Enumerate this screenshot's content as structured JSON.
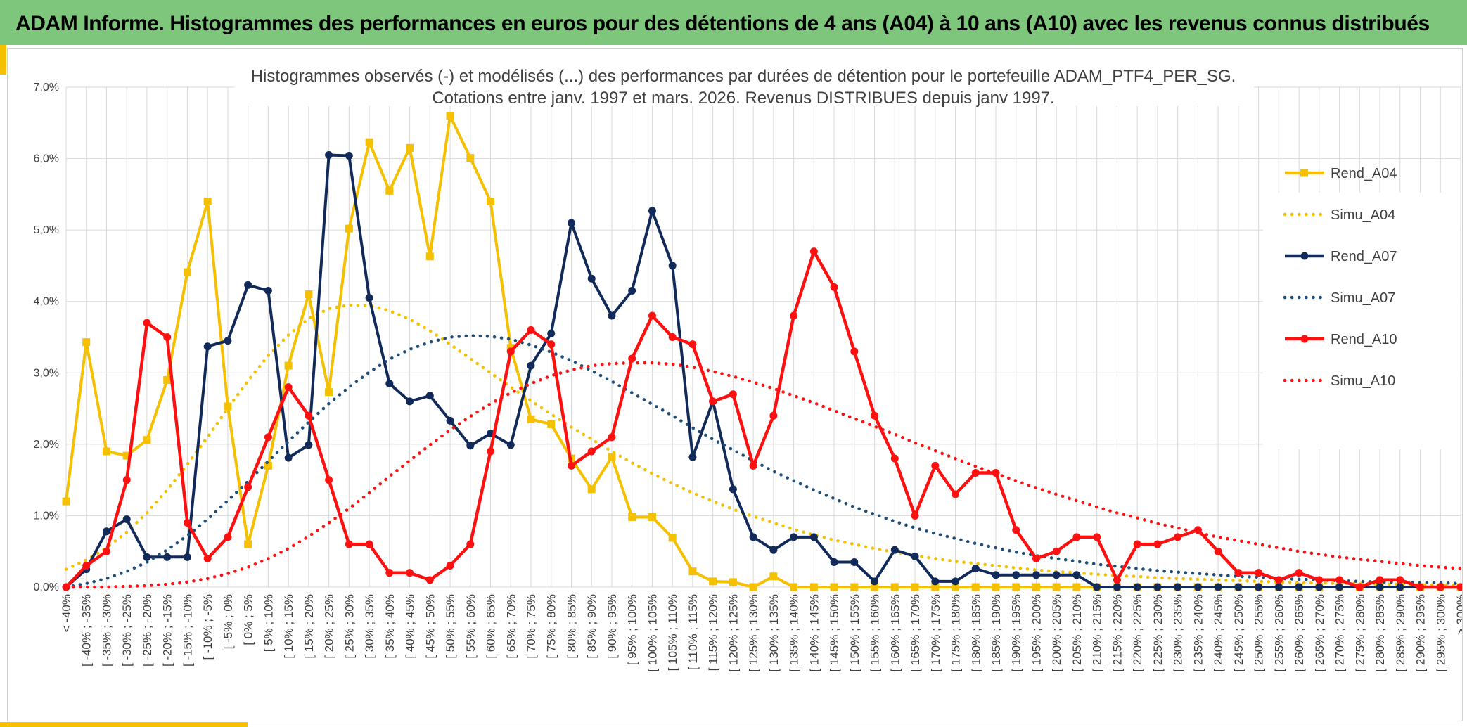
{
  "header": {
    "title": "ADAM Informe. Histogrammes des performances en euros pour des détentions de 4 ans (A04) à 10 ans (A10) avec les revenus connus distribués"
  },
  "chart_data": {
    "type": "line",
    "title": [
      "Histogrammes observés (-) et modélisés (...) des performances par durées de détention pour le portefeuille ADAM_PTF4_PER_SG.",
      "Cotations entre janv. 1997 et mars. 2026. Revenus DISTRIBUES depuis janv 1997."
    ],
    "xlabel": "",
    "ylabel": "",
    "ylim": [
      0,
      7
    ],
    "yticks": [
      "0,0%",
      "1,0%",
      "2,0%",
      "3,0%",
      "4,0%",
      "5,0%",
      "6,0%",
      "7,0%"
    ],
    "grid": true,
    "legend_position": "right",
    "categories": [
      "< -40%",
      "[ -40% ; -35%",
      "[ -35% ; -30%",
      "[ -30% ; -25%",
      "[ -25% ; -20%",
      "[ -20% ; -15%",
      "[ -15% ; -10%",
      "[ -10% ; -5%",
      "[ -5% ; 0%",
      "[ 0% ; 5%",
      "[ 5% ; 10%",
      "[ 10% ; 15%",
      "[ 15% ; 20%",
      "[ 20% ; 25%",
      "[ 25% ; 30%",
      "[ 30% ; 35%",
      "[ 35% ; 40%",
      "[ 40% ; 45%",
      "[ 45% ; 50%",
      "[ 50% ; 55%",
      "[ 55% ; 60%",
      "[ 60% ; 65%",
      "[ 65% ; 70%",
      "[ 70% ; 75%",
      "[ 75% ; 80%",
      "[ 80% ; 85%",
      "[ 85% ; 90%",
      "[ 90% ; 95%",
      "[ 95% ; 100%",
      "[ 100% ; 105%",
      "[ 105% ; 110%",
      "[ 110% ; 115%",
      "[ 115% ; 120%",
      "[ 120% ; 125%",
      "[ 125% ; 130%",
      "[ 130% ; 135%",
      "[ 135% ; 140%",
      "[ 140% ; 145%",
      "[ 145% ; 150%",
      "[ 150% ; 155%",
      "[ 155% ; 160%",
      "[ 160% ; 165%",
      "[ 165% ; 170%",
      "[ 170% ; 175%",
      "[ 175% ; 180%",
      "[ 180% ; 185%",
      "[ 185% ; 190%",
      "[ 190% ; 195%",
      "[ 195% ; 200%",
      "[ 200% ; 205%",
      "[ 205% ; 210%",
      "[ 210% ; 215%",
      "[ 215% ; 220%",
      "[ 220% ; 225%",
      "[ 225% ; 230%",
      "[ 230% ; 235%",
      "[ 235% ; 240%",
      "[ 240% ; 245%",
      "[ 245% ; 250%",
      "[ 250% ; 255%",
      "[ 255% ; 260%",
      "[ 260% ; 265%",
      "[ 265% ; 270%",
      "[ 270% ; 275%",
      "[ 275% ; 280%",
      "[ 280% ; 285%",
      "[ 285% ; 290%",
      "[ 290% ; 295%",
      "[ 295% ; 300%",
      "> 300%"
    ],
    "series": [
      {
        "name": "Rend_A04",
        "color": "#f5c000",
        "style": "solid",
        "marker": "square",
        "values": [
          1.2,
          3.43,
          1.9,
          1.84,
          2.06,
          2.9,
          4.41,
          5.4,
          2.53,
          0.6,
          1.7,
          3.1,
          4.1,
          2.73,
          5.02,
          6.23,
          5.55,
          6.15,
          4.63,
          6.6,
          6.01,
          5.4,
          3.35,
          2.35,
          2.28,
          1.8,
          1.37,
          1.82,
          0.98,
          0.98,
          0.69,
          0.22,
          0.08,
          0.07,
          0.0,
          0.15,
          0.0,
          0.0,
          0.0,
          0.0,
          0.0,
          0.0,
          0.0,
          0.0,
          0.0,
          0.0,
          0.0,
          0.0,
          0.0,
          0.0,
          0.0,
          0.0,
          0.0,
          0.0,
          0.0,
          0.0,
          0.0,
          0.0,
          0.0,
          0.0,
          0.0,
          0.0,
          0.0,
          0.0,
          0.0,
          0.0,
          0.0,
          0.0,
          0.0,
          0.0
        ]
      },
      {
        "name": "Simu_A04",
        "color": "#f5c000",
        "style": "dotted",
        "marker": "none",
        "values": [
          0.25,
          0.38,
          0.55,
          0.77,
          1.04,
          1.36,
          1.72,
          2.1,
          2.5,
          2.89,
          3.24,
          3.53,
          3.76,
          3.9,
          3.95,
          3.94,
          3.87,
          3.75,
          3.59,
          3.4,
          3.2,
          3.0,
          2.8,
          2.61,
          2.42,
          2.24,
          2.07,
          1.9,
          1.74,
          1.59,
          1.45,
          1.32,
          1.2,
          1.09,
          0.99,
          0.9,
          0.81,
          0.73,
          0.66,
          0.6,
          0.54,
          0.49,
          0.44,
          0.4,
          0.36,
          0.33,
          0.3,
          0.27,
          0.24,
          0.22,
          0.2,
          0.18,
          0.16,
          0.15,
          0.13,
          0.12,
          0.11,
          0.1,
          0.09,
          0.08,
          0.07,
          0.06,
          0.06,
          0.05,
          0.05,
          0.04,
          0.04,
          0.03,
          0.03,
          0.03
        ]
      },
      {
        "name": "Rend_A07",
        "color": "#112a5a",
        "style": "solid",
        "marker": "circle",
        "values": [
          0.0,
          0.25,
          0.78,
          0.95,
          0.42,
          0.42,
          0.42,
          3.37,
          3.45,
          4.23,
          4.15,
          1.81,
          1.99,
          6.05,
          6.04,
          4.05,
          2.85,
          2.6,
          2.68,
          2.33,
          1.98,
          2.15,
          1.99,
          3.1,
          3.55,
          5.1,
          4.32,
          3.8,
          4.15,
          5.27,
          4.5,
          1.82,
          2.6,
          1.37,
          0.7,
          0.52,
          0.7,
          0.7,
          0.35,
          0.35,
          0.08,
          0.52,
          0.43,
          0.08,
          0.08,
          0.26,
          0.17,
          0.17,
          0.17,
          0.17,
          0.17,
          0.0,
          0.0,
          0.0,
          0.0,
          0.0,
          0.0,
          0.0,
          0.0,
          0.0,
          0.0,
          0.0,
          0.0,
          0.0,
          0.0,
          0.0,
          0.0,
          0.0,
          0.0,
          0.0
        ]
      },
      {
        "name": "Simu_A07",
        "color": "#1f4e79",
        "style": "dotted",
        "marker": "none",
        "values": [
          0.0,
          0.05,
          0.12,
          0.22,
          0.35,
          0.52,
          0.72,
          0.95,
          1.21,
          1.48,
          1.76,
          2.04,
          2.31,
          2.57,
          2.8,
          3.01,
          3.19,
          3.33,
          3.43,
          3.5,
          3.52,
          3.51,
          3.47,
          3.39,
          3.29,
          3.17,
          3.03,
          2.88,
          2.72,
          2.56,
          2.4,
          2.23,
          2.07,
          1.92,
          1.77,
          1.62,
          1.49,
          1.36,
          1.24,
          1.12,
          1.02,
          0.92,
          0.83,
          0.75,
          0.68,
          0.61,
          0.55,
          0.49,
          0.44,
          0.4,
          0.36,
          0.32,
          0.29,
          0.26,
          0.23,
          0.21,
          0.19,
          0.17,
          0.15,
          0.14,
          0.12,
          0.11,
          0.1,
          0.09,
          0.08,
          0.07,
          0.07,
          0.06,
          0.06,
          0.05
        ]
      },
      {
        "name": "Rend_A10",
        "color": "#ff1010",
        "style": "solid",
        "marker": "circle",
        "values": [
          0.0,
          0.3,
          0.5,
          1.5,
          3.7,
          3.5,
          0.9,
          0.4,
          0.7,
          1.4,
          2.1,
          2.8,
          2.4,
          1.5,
          0.6,
          0.6,
          0.2,
          0.2,
          0.1,
          0.3,
          0.6,
          1.9,
          3.3,
          3.6,
          3.4,
          1.7,
          1.9,
          2.1,
          3.2,
          3.8,
          3.5,
          3.4,
          2.6,
          2.7,
          1.7,
          2.4,
          3.8,
          4.7,
          4.2,
          3.3,
          2.4,
          1.8,
          1.0,
          1.7,
          1.3,
          1.6,
          1.6,
          0.8,
          0.4,
          0.5,
          0.7,
          0.7,
          0.1,
          0.6,
          0.6,
          0.7,
          0.8,
          0.5,
          0.2,
          0.2,
          0.1,
          0.2,
          0.1,
          0.1,
          0.0,
          0.1,
          0.1,
          0.0,
          0.0,
          0.0
        ]
      },
      {
        "name": "Simu_A10",
        "color": "#ff1010",
        "style": "dotted",
        "marker": "none",
        "values": [
          0.0,
          0.0,
          0.0,
          0.01,
          0.02,
          0.04,
          0.07,
          0.12,
          0.19,
          0.28,
          0.4,
          0.54,
          0.71,
          0.9,
          1.1,
          1.32,
          1.55,
          1.77,
          1.99,
          2.2,
          2.39,
          2.57,
          2.72,
          2.85,
          2.96,
          3.04,
          3.1,
          3.13,
          3.14,
          3.14,
          3.12,
          3.08,
          3.02,
          2.95,
          2.87,
          2.78,
          2.68,
          2.58,
          2.47,
          2.36,
          2.25,
          2.14,
          2.02,
          1.91,
          1.8,
          1.69,
          1.59,
          1.49,
          1.39,
          1.3,
          1.21,
          1.12,
          1.04,
          0.97,
          0.89,
          0.83,
          0.76,
          0.7,
          0.65,
          0.6,
          0.55,
          0.5,
          0.46,
          0.42,
          0.39,
          0.36,
          0.33,
          0.3,
          0.28,
          0.26
        ]
      }
    ]
  }
}
